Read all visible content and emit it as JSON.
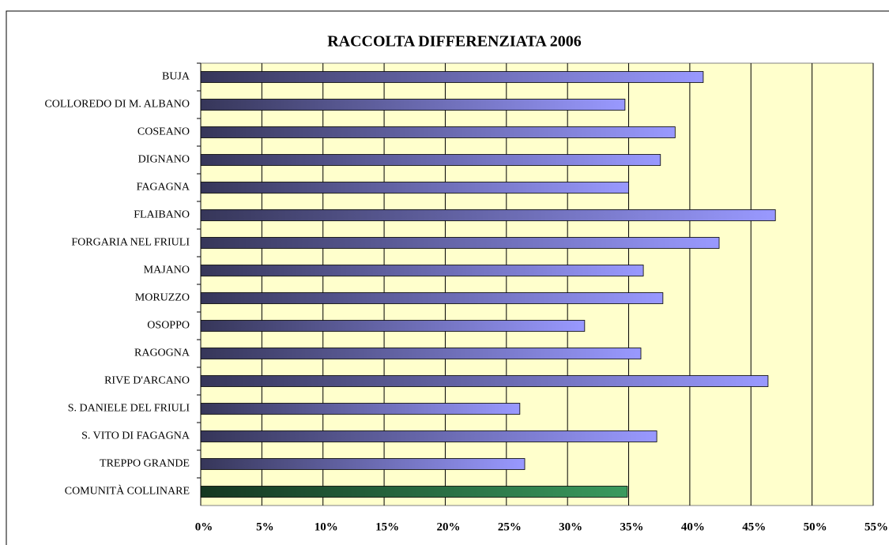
{
  "chart_data": {
    "type": "hbar",
    "title": "RACCOLTA DIFFERENZIATA 2006",
    "categories": [
      "BUJA",
      "COLLOREDO DI M. ALBANO",
      "COSEANO",
      "DIGNANO",
      "FAGAGNA",
      "FLAIBANO",
      "FORGARIA NEL FRIULI",
      "MAJANO",
      "MORUZZO",
      "OSOPPO",
      "RAGOGNA",
      "RIVE D'ARCANO",
      "S. DANIELE DEL FRIULI",
      "S. VITO DI FAGAGNA",
      "TREPPO GRANDE",
      "COMUNITÀ COLLINARE"
    ],
    "values": [
      41.1,
      34.7,
      38.8,
      37.6,
      35.0,
      47.0,
      42.4,
      36.2,
      37.8,
      31.4,
      36.0,
      46.4,
      26.1,
      37.3,
      26.5,
      34.9
    ],
    "colors": [
      "#9999ff",
      "#9999ff",
      "#9999ff",
      "#9999ff",
      "#9999ff",
      "#9999ff",
      "#9999ff",
      "#9999ff",
      "#9999ff",
      "#9999ff",
      "#9999ff",
      "#9999ff",
      "#9999ff",
      "#9999ff",
      "#9999ff",
      "#3a9a5e"
    ],
    "xlim": [
      0,
      55
    ],
    "xticks": [
      {
        "value": 0,
        "label": "0%"
      },
      {
        "value": 5,
        "label": "5%"
      },
      {
        "value": 10,
        "label": "10%"
      },
      {
        "value": 15,
        "label": "15%"
      },
      {
        "value": 20,
        "label": "20%"
      },
      {
        "value": 25,
        "label": "25%"
      },
      {
        "value": 30,
        "label": "30%"
      },
      {
        "value": 35,
        "label": "35%"
      },
      {
        "value": 40,
        "label": "40%"
      },
      {
        "value": 45,
        "label": "45%"
      },
      {
        "value": 50,
        "label": "50%"
      },
      {
        "value": 55,
        "label": "55%"
      }
    ],
    "grid": true,
    "background": "#ffffcc"
  }
}
